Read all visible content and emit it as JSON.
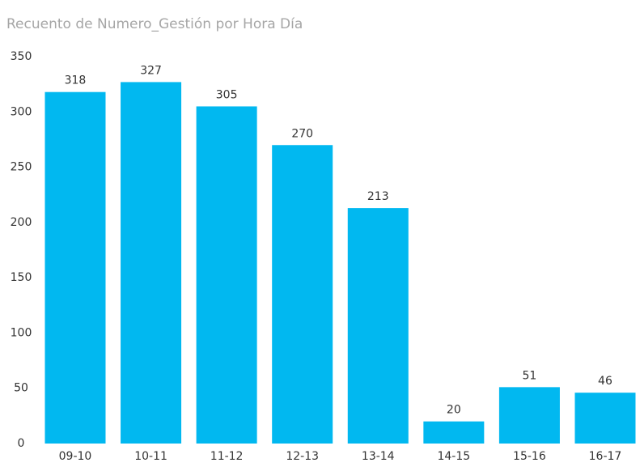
{
  "chart_data": {
    "type": "bar",
    "title": "Recuento de Numero_Gestión por Hora Día",
    "categories": [
      "09-10",
      "10-11",
      "11-12",
      "12-13",
      "13-14",
      "14-15",
      "15-16",
      "16-17"
    ],
    "values": [
      318,
      327,
      305,
      270,
      213,
      20,
      51,
      46
    ],
    "color": "#01b8f0",
    "ylim": [
      0,
      350
    ],
    "yticks": [
      0,
      50,
      100,
      150,
      200,
      250,
      300,
      350
    ],
    "grid": false
  }
}
